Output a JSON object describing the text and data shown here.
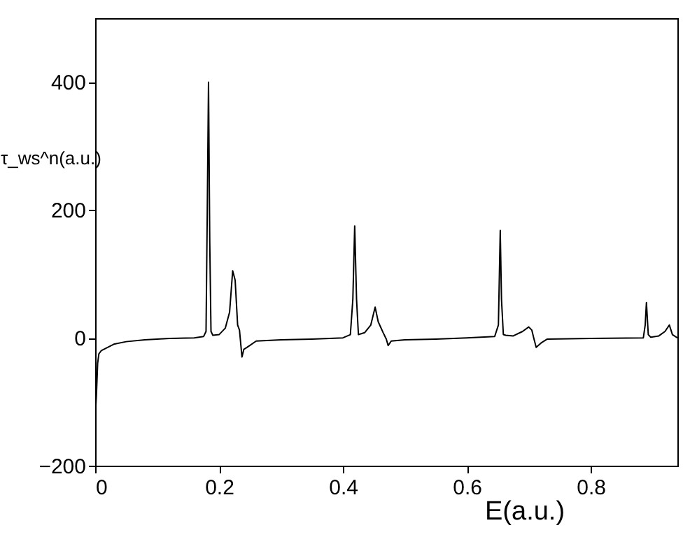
{
  "chart_data": {
    "type": "line",
    "xlabel": "E(a.u.)",
    "ylabel": "τ_ws^n(a.u.)",
    "xlim": [
      0,
      0.94
    ],
    "ylim": [
      -200,
      500
    ],
    "xticks": [
      0,
      0.2,
      0.4,
      0.6,
      0.8
    ],
    "yticks": [
      -200,
      0,
      200,
      400
    ],
    "grid": false,
    "marker": "none",
    "line_style": "solid",
    "series": [
      {
        "color": "#000000",
        "x": [
          0,
          0.002,
          0.004,
          0.006,
          0.01,
          0.02,
          0.03,
          0.05,
          0.08,
          0.12,
          0.16,
          0.175,
          0.179,
          0.181,
          0.183,
          0.185,
          0.187,
          0.19,
          0.2,
          0.21,
          0.217,
          0.222,
          0.226,
          0.23,
          0.233,
          0.237,
          0.24,
          0.245,
          0.26,
          0.3,
          0.35,
          0.4,
          0.412,
          0.416,
          0.419,
          0.422,
          0.425,
          0.435,
          0.445,
          0.452,
          0.457,
          0.465,
          0.47,
          0.473,
          0.478,
          0.5,
          0.55,
          0.6,
          0.645,
          0.651,
          0.654,
          0.656,
          0.659,
          0.663,
          0.675,
          0.69,
          0.7,
          0.705,
          0.708,
          0.712,
          0.72,
          0.73,
          0.8,
          0.885,
          0.888,
          0.89,
          0.893,
          0.897,
          0.91,
          0.92,
          0.927,
          0.932,
          0.94
        ],
        "values": [
          -125,
          -90,
          -40,
          -25,
          -20,
          -15,
          -10,
          -6,
          -3,
          -1,
          0,
          2,
          10,
          200,
          400,
          150,
          10,
          4,
          5,
          15,
          40,
          105,
          90,
          20,
          12,
          -30,
          -18,
          -15,
          -5,
          -3,
          -2,
          0,
          5,
          60,
          175,
          60,
          5,
          8,
          20,
          48,
          25,
          8,
          -2,
          -12,
          -5,
          -3,
          -2,
          0,
          2,
          20,
          168,
          60,
          5,
          4,
          3,
          10,
          17,
          12,
          0,
          -15,
          -8,
          -2,
          -1,
          0,
          20,
          55,
          5,
          1,
          3,
          10,
          20,
          5,
          0
        ]
      }
    ]
  }
}
